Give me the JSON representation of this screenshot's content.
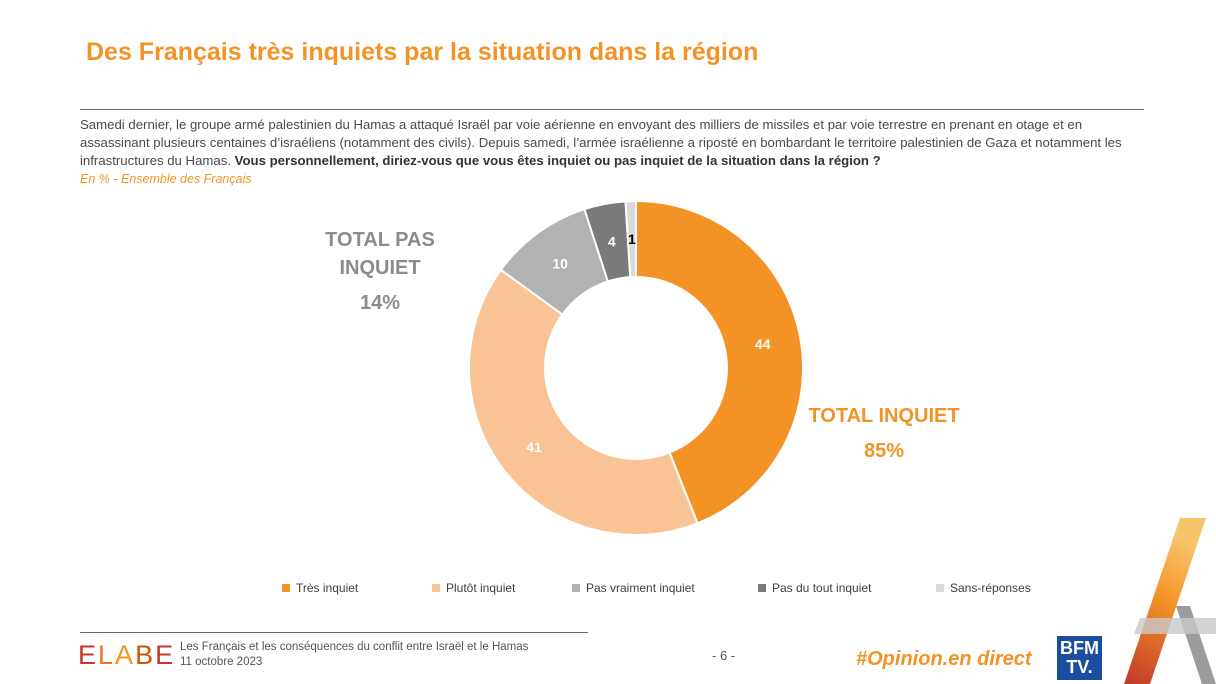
{
  "title": "Des Français très inquiets par la situation dans la région",
  "intro": {
    "text": "Samedi dernier, le groupe armé palestinien du Hamas a attaqué Israël par voie aérienne en envoyant des milliers de missiles et par voie terrestre en prenant en otage et en assassinant plusieurs centaines d’israéliens (notamment des civils). Depuis samedi, l’armée israélienne a riposté en bombardant le territoire palestinien de Gaza et notamment les infrastructures du Hamas.",
    "question": "Vous personnellement, diriez-vous que vous êtes inquiet ou pas inquiet de la situation dans la région ?"
  },
  "subnote": "En % - Ensemble des Français",
  "totals": {
    "pas_inquiet_label": "TOTAL PAS INQUIET",
    "pas_inquiet_value": "14%",
    "inquiet_label": "TOTAL INQUIET",
    "inquiet_value": "85%"
  },
  "chart_data": {
    "type": "pie",
    "donut": true,
    "categories": [
      "Très inquiet",
      "Plutôt inquiet",
      "Pas vraiment inquiet",
      "Pas du tout inquiet",
      "Sans-réponses"
    ],
    "values": [
      44,
      41,
      10,
      4,
      1
    ],
    "labels": [
      "44",
      "41",
      "10",
      "4",
      "1"
    ],
    "colors": [
      "#f39325",
      "#f9c395",
      "#b2b2b2",
      "#7a7a7a",
      "#d9d9d9"
    ],
    "label_colors": [
      "#ffffff",
      "#ffffff",
      "#ffffff",
      "#ffffff",
      "#000000"
    ],
    "title": "Vous personnellement, diriez-vous que vous êtes inquiet ou pas inquiet de la situation dans la région ?",
    "unit": "%",
    "legend_position": "bottom"
  },
  "footer": {
    "logo": "ELABE",
    "line1": "Les Français et les conséquences du conflit entre Israël et le Hamas",
    "line2": "11 octobre 2023",
    "page": "- 6 -",
    "hashtag": "#Opinion.en direct",
    "bfm_line1": "BFM",
    "bfm_line2": "TV."
  },
  "colors": {
    "accent": "#f39325",
    "text": "#404040",
    "grey_total": "#8c8c8c",
    "bfm_blue": "#1a4fa0"
  }
}
